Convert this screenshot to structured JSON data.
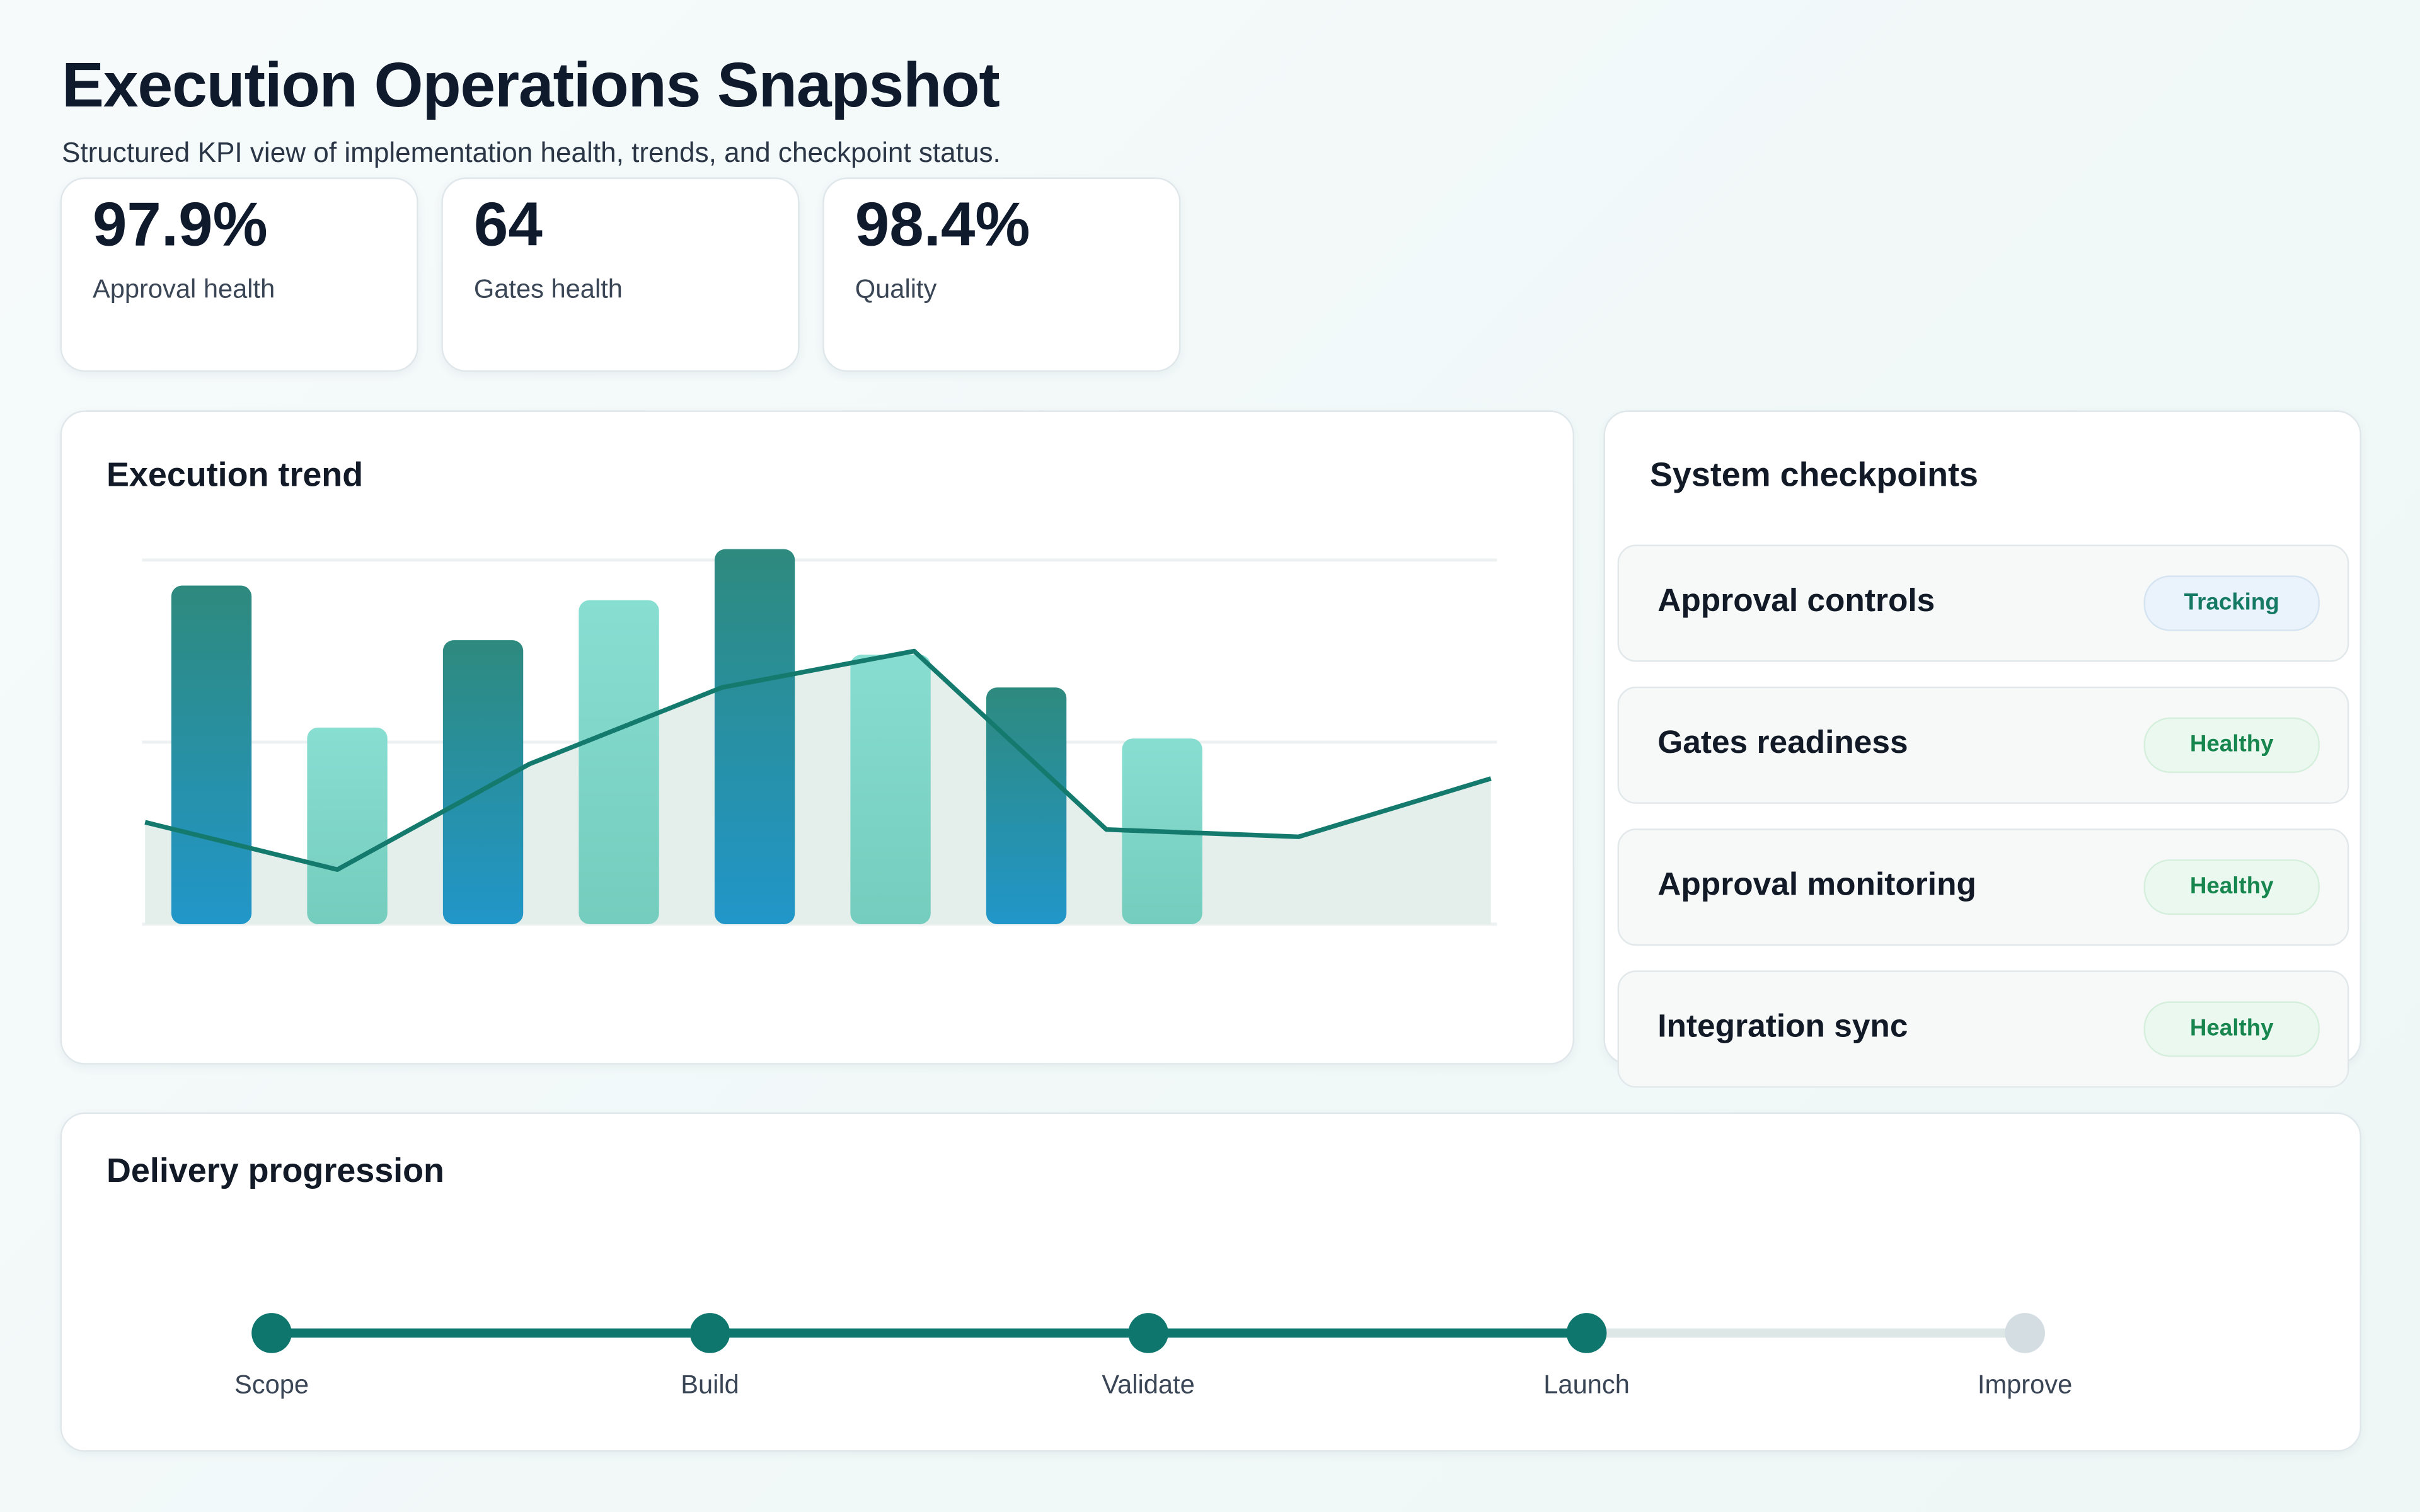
{
  "header": {
    "title": "Execution Operations Snapshot",
    "subtitle": "Structured KPI view of implementation health, trends, and checkpoint status."
  },
  "kpis": [
    {
      "value": "97.9%",
      "label": "Approval health"
    },
    {
      "value": "64",
      "label": "Gates health"
    },
    {
      "value": "98.4%",
      "label": "Quality"
    }
  ],
  "trend": {
    "title": "Execution trend"
  },
  "chart_data": {
    "type": "bar",
    "title": "Execution trend",
    "ylim": [
      0,
      100
    ],
    "grid": true,
    "bars": {
      "values": [
        93,
        54,
        78,
        89,
        103,
        74,
        65,
        51
      ],
      "colors": [
        "gradient-dark",
        "light",
        "gradient-dark",
        "light",
        "gradient-dark",
        "light",
        "gradient-dark",
        "light"
      ]
    },
    "line": {
      "values": [
        28,
        15,
        44,
        65,
        75,
        26,
        24,
        40
      ],
      "color": "#157a6e",
      "area_fill": "#e4efec"
    },
    "colors": {
      "dark_top": "#2e8a7e",
      "dark_bottom": "#2196c9",
      "light_top": "#82dccf",
      "light_bottom": "#6ecbbb"
    }
  },
  "checkpoints": {
    "title": "System checkpoints",
    "items": [
      {
        "name": "Approval controls",
        "status": "Tracking"
      },
      {
        "name": "Gates readiness",
        "status": "Healthy"
      },
      {
        "name": "Approval monitoring",
        "status": "Healthy"
      },
      {
        "name": "Integration sync",
        "status": "Healthy"
      }
    ]
  },
  "progression": {
    "title": "Delivery progression",
    "steps": [
      {
        "label": "Scope",
        "done": true
      },
      {
        "label": "Build",
        "done": true
      },
      {
        "label": "Validate",
        "done": true
      },
      {
        "label": "Launch",
        "done": true
      },
      {
        "label": "Improve",
        "done": false
      }
    ],
    "colors": {
      "done": "#0f766e",
      "pending": "#d3dde2",
      "track_pending": "#dde8e6"
    }
  }
}
